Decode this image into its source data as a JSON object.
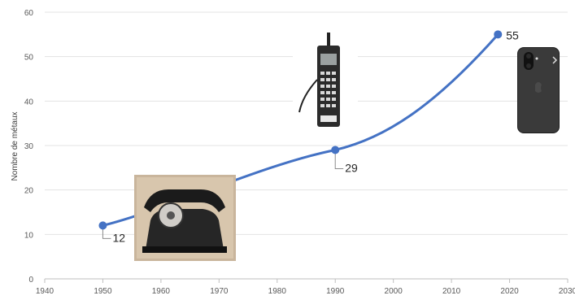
{
  "chart_data": {
    "type": "line",
    "ylabel": "Nombre de métaux",
    "xlim": [
      1940,
      2030
    ],
    "ylim": [
      0,
      60
    ],
    "x_ticks": [
      1940,
      1950,
      1960,
      1970,
      1980,
      1990,
      2000,
      2010,
      2020,
      2030
    ],
    "y_ticks": [
      0,
      10,
      20,
      30,
      40,
      50,
      60
    ],
    "grid": "horizontal",
    "color": "#4472c4",
    "series": [
      {
        "x": [
          1950,
          1990,
          2018
        ],
        "values": [
          12,
          29,
          55
        ],
        "labels": [
          "12",
          "29",
          "55"
        ]
      }
    ]
  },
  "images": [
    "rotary-telephone-image",
    "brick-mobile-phone-image",
    "smartphone-image"
  ]
}
